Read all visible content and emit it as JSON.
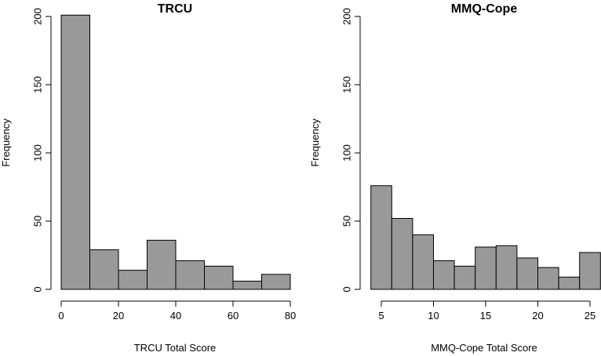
{
  "chart_data": [
    {
      "type": "bar",
      "title": "TRCU",
      "xlabel": "TRCU Total Score",
      "ylabel": "Frequency",
      "bin_edges": [
        0,
        10,
        20,
        30,
        40,
        50,
        60,
        70,
        80
      ],
      "values": [
        201,
        29,
        14,
        36,
        21,
        17,
        6,
        11
      ],
      "xlim": [
        0,
        80
      ],
      "ylim": [
        0,
        200
      ],
      "x_ticks": [
        0,
        20,
        40,
        60,
        80
      ],
      "y_ticks": [
        0,
        50,
        100,
        150,
        200
      ],
      "bar_color": "#999999",
      "grid": false
    },
    {
      "type": "bar",
      "title": "MMQ-Cope",
      "xlabel": "MMQ-Cope Total Score",
      "ylabel": "Frequency",
      "bin_edges": [
        4,
        6,
        8,
        10,
        12,
        14,
        16,
        18,
        20,
        22,
        24,
        26
      ],
      "values": [
        76,
        52,
        40,
        21,
        17,
        31,
        32,
        23,
        16,
        9,
        27
      ],
      "xlim": [
        5,
        25
      ],
      "ylim": [
        0,
        200
      ],
      "x_ticks": [
        5,
        10,
        15,
        20,
        25
      ],
      "y_ticks": [
        0,
        50,
        100,
        150,
        200
      ],
      "bar_color": "#999999",
      "grid": false
    }
  ]
}
